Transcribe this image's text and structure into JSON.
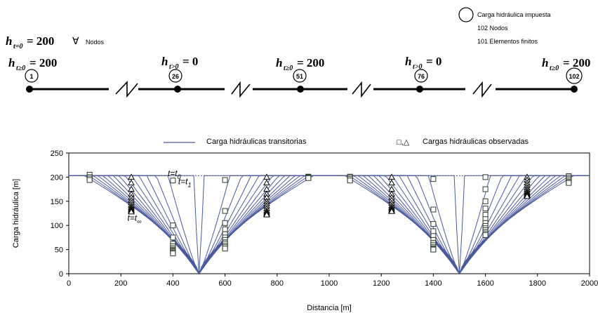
{
  "schematic": {
    "initial_condition": "h_{t=0} = 200",
    "nodes_symbol": "∀",
    "nodes_label": "Nodos",
    "legend_circle": "Carga hidráulica impuesta",
    "legend_nodes": "102 Nodos",
    "legend_elements": "101 Elementos finitos",
    "conditions": [
      {
        "node": "1",
        "h": "t≥0",
        "value": "= 200"
      },
      {
        "node": "26",
        "h": "t>0",
        "value": "= 0"
      },
      {
        "node": "51",
        "h": "t≥0",
        "value": "= 200"
      },
      {
        "node": "76",
        "h": "t>0",
        "value": "= 0"
      },
      {
        "node": "102",
        "h": "t≥0",
        "value": "= 200"
      }
    ]
  },
  "chart_data": {
    "type": "line",
    "xlabel": "Distancia [m]",
    "ylabel": "Carga hidráulica [m]",
    "xlim": [
      0,
      2000
    ],
    "ylim": [
      0,
      250
    ],
    "xticks": [
      0,
      200,
      400,
      600,
      800,
      1000,
      1200,
      1400,
      1600,
      1800,
      2000
    ],
    "yticks": [
      0,
      50,
      100,
      150,
      200,
      250
    ],
    "grid": false,
    "legend_position": "top",
    "legend": {
      "line_label": "Carga hidráulicas transitorias",
      "markers_label": "Cargas hidráulicas observadas",
      "marker_symbols": "□,△"
    },
    "annotations": [
      {
        "text": "t=t",
        "sub": "0",
        "x": 380,
        "y": 202
      },
      {
        "text": "t=t",
        "sub": "1",
        "x": 420,
        "y": 185
      },
      {
        "text": "t=t",
        "sub": "∞",
        "x": 225,
        "y": 110
      }
    ],
    "series_color": "#4a5a9f",
    "curve_count": 15,
    "depressions": [
      {
        "center": 500,
        "reach": 420
      },
      {
        "center": 1500,
        "reach": 420
      }
    ],
    "observations": [
      {
        "x": 80,
        "marker": "square",
        "values": [
          205,
          200,
          197,
          194
        ]
      },
      {
        "x": 240,
        "marker": "triangle",
        "values": [
          200,
          188,
          175,
          165,
          158,
          152,
          147,
          142,
          138,
          135,
          132,
          130,
          128
        ]
      },
      {
        "x": 400,
        "marker": "square",
        "values": [
          193,
          100,
          75,
          62,
          57,
          53,
          50,
          48,
          46,
          44,
          42
        ]
      },
      {
        "x": 600,
        "marker": "square",
        "values": [
          194,
          130,
          105,
          92,
          82,
          75,
          70,
          65,
          62,
          58,
          55,
          52
        ]
      },
      {
        "x": 760,
        "marker": "triangle",
        "values": [
          200,
          188,
          175,
          165,
          158,
          150,
          145,
          140,
          135,
          130,
          127,
          124,
          122
        ]
      },
      {
        "x": 920,
        "marker": "square",
        "values": [
          201,
          200,
          199,
          198
        ]
      },
      {
        "x": 1080,
        "marker": "square",
        "values": [
          201,
          199,
          196,
          193
        ]
      },
      {
        "x": 1240,
        "marker": "triangle",
        "values": [
          200,
          188,
          175,
          165,
          158,
          152,
          146,
          141,
          137,
          134,
          131,
          129
        ]
      },
      {
        "x": 1400,
        "marker": "square",
        "values": [
          196,
          133,
          103,
          88,
          78,
          70,
          64,
          60,
          56,
          53,
          51,
          50
        ]
      },
      {
        "x": 1600,
        "marker": "square",
        "values": [
          200,
          175,
          150,
          135,
          122,
          113,
          105,
          99,
          94,
          90,
          86,
          83,
          80
        ]
      },
      {
        "x": 1760,
        "marker": "triangle",
        "values": [
          200,
          194,
          188,
          183,
          178,
          174,
          170,
          167,
          164,
          162,
          160
        ]
      },
      {
        "x": 1920,
        "marker": "square",
        "values": [
          202,
          199,
          196,
          193,
          190,
          188
        ]
      }
    ]
  }
}
